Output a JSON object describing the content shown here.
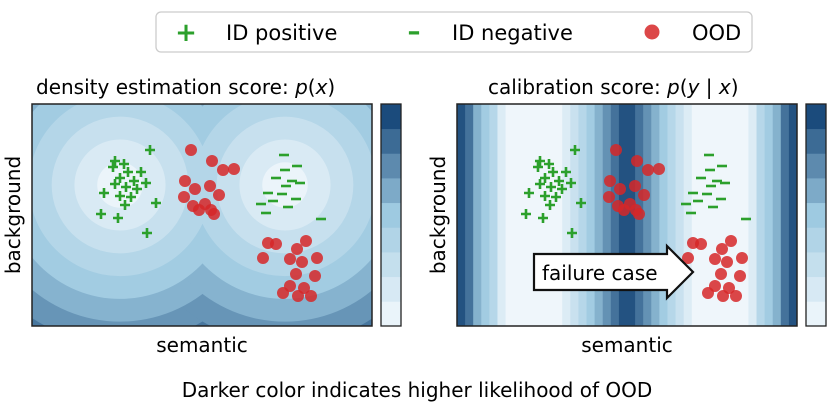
{
  "legend": {
    "positive_marker": "+",
    "positive_label": "ID positive",
    "negative_marker": "–",
    "negative_label": "ID negative",
    "ood_label": "OOD"
  },
  "colors": {
    "positive": "#2ca02c",
    "negative": "#2ca02c",
    "ood": "#d62728",
    "cmap_light": "#f4f9fd",
    "cmap_dark": "#0b3b6f"
  },
  "left_panel": {
    "title_prefix": "density estimation score: ",
    "title_func": "p",
    "title_open": "(",
    "title_var": "x",
    "title_close": ")",
    "xlabel": "semantic",
    "ylabel": "background"
  },
  "right_panel": {
    "title_prefix": "calibration score: ",
    "title_func": "p",
    "title_open": "(",
    "title_var1": "y",
    "title_sep": " | ",
    "title_var2": "x",
    "title_close": ")",
    "xlabel": "semantic",
    "ylabel": "background",
    "annotation": "failure case"
  },
  "caption": "Darker color indicates higher likelihood of OOD"
}
